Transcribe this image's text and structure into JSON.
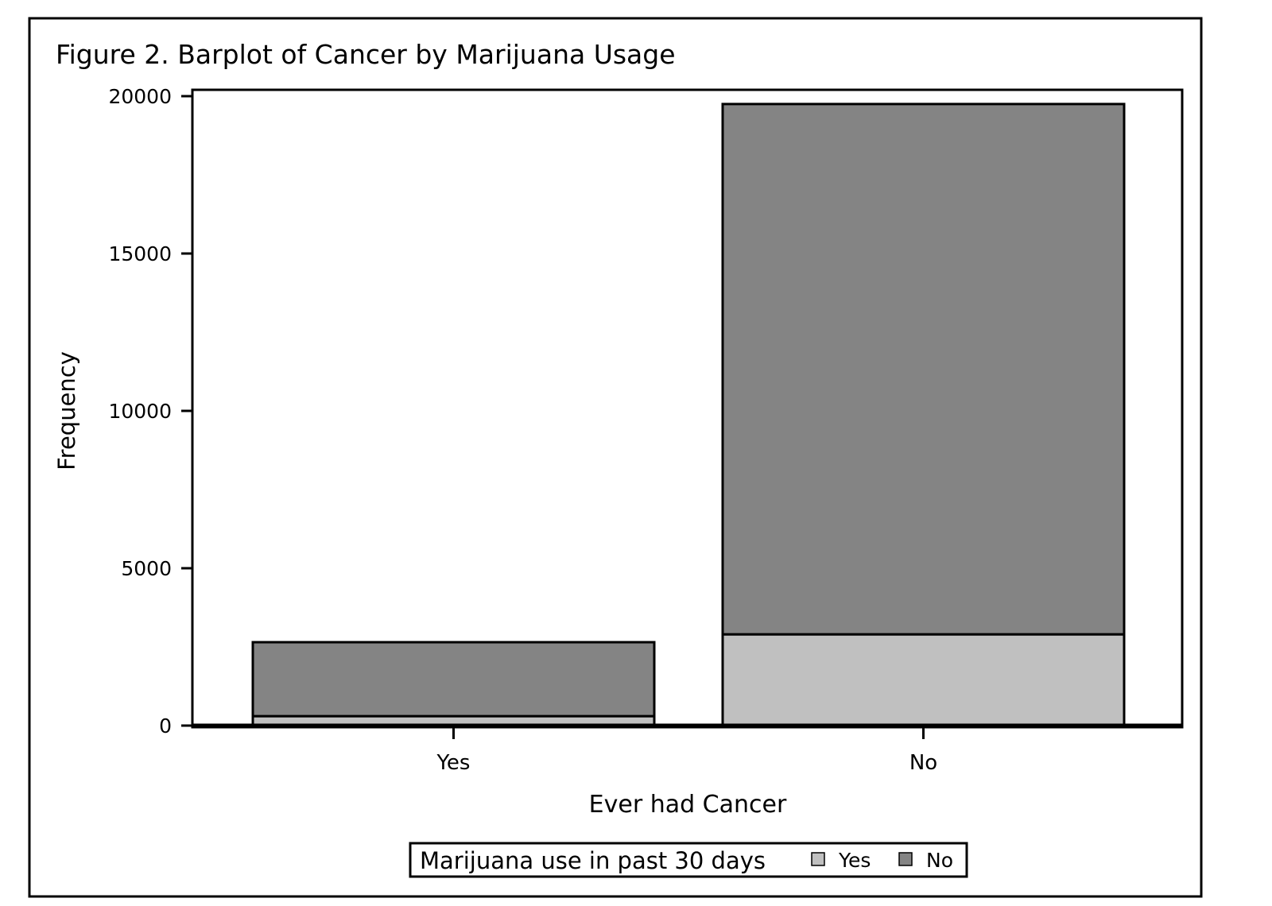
{
  "chart_data": {
    "type": "bar",
    "stacked": true,
    "title": "Figure 2. Barplot of Cancer by Marijuana Usage",
    "xlabel": "Ever had Cancer",
    "ylabel": "Frequency",
    "categories": [
      "Yes",
      "No"
    ],
    "series": [
      {
        "name": "Yes",
        "values": [
          300,
          2900
        ],
        "color": "#c0c0c0"
      },
      {
        "name": "No",
        "values": [
          2350,
          16850
        ],
        "color": "#848484"
      }
    ],
    "ylim": [
      0,
      20000
    ],
    "yticks": [
      "0",
      "5000",
      "10000",
      "15000",
      "20000"
    ],
    "legend": {
      "title": "Marijuana use in past 30 days",
      "position": "bottom"
    },
    "grid": false
  }
}
